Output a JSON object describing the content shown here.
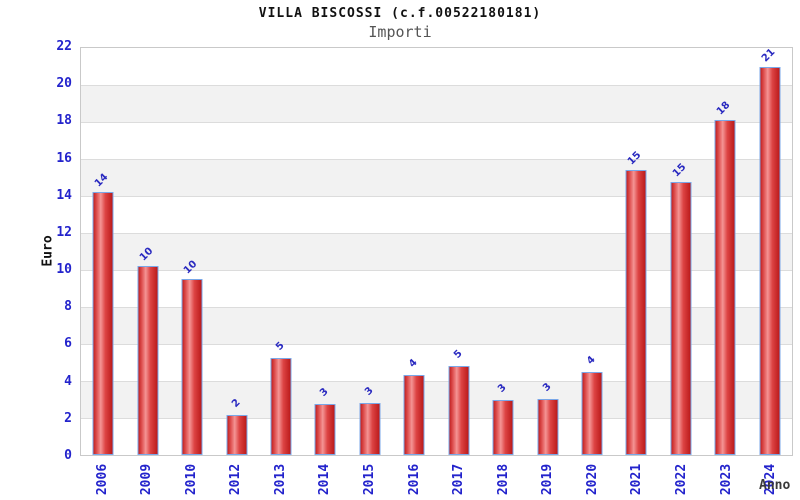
{
  "chart_data": {
    "type": "bar",
    "title": "VILLA BISCOSSI (c.f.00522180181)",
    "subtitle": "Importi",
    "xlabel": "Anno",
    "ylabel": "Euro",
    "ylim": [
      0,
      22
    ],
    "ytick_step": 2,
    "yticks": [
      0,
      2,
      4,
      6,
      8,
      10,
      12,
      14,
      16,
      18,
      20,
      22
    ],
    "grid": true,
    "legend": false,
    "alternating_bands": true,
    "categories": [
      "2006",
      "2009",
      "2010",
      "2012",
      "2013",
      "2014",
      "2015",
      "2016",
      "2017",
      "2018",
      "2019",
      "2020",
      "2021",
      "2022",
      "2023",
      "2024"
    ],
    "series": [
      {
        "name": "Importi",
        "values": [
          14.2,
          10.2,
          9.5,
          2.15,
          5.25,
          2.75,
          2.8,
          4.35,
          4.8,
          2.95,
          3.05,
          4.5,
          15.4,
          14.75,
          18.1,
          21.0
        ],
        "bar_labels": [
          "14",
          "10",
          "10",
          "2",
          "5",
          "3",
          "3",
          "4",
          "5",
          "3",
          "3",
          "4",
          "15",
          "15",
          "18",
          "21"
        ]
      }
    ]
  },
  "colors": {
    "axis_text": "#2323cc",
    "value_label": "#2a2ac0",
    "title": "#111111",
    "subtitle": "#555555",
    "xlabel": "#3a3a3a",
    "ylabel": "#111111",
    "bar_border": "#79a7e8",
    "bar_gradient": [
      "#c22020",
      "#e25858",
      "#f49494",
      "#dd4444",
      "#bb1a1a"
    ],
    "band_gray": "#f2f2f2",
    "band_white": "#ffffff",
    "gridline": "#dcdcdc",
    "plot_border": "#c9c9c9"
  }
}
